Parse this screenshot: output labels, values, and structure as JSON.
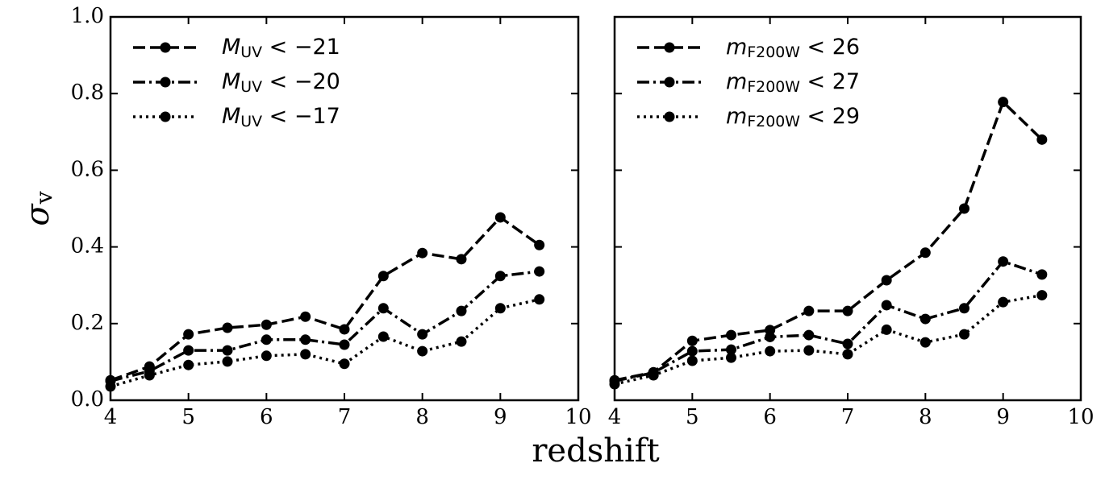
{
  "chart_data": [
    {
      "type": "line",
      "x": [
        4,
        4.5,
        5,
        5.5,
        6,
        6.5,
        7,
        7.5,
        8,
        8.5,
        9,
        9.5
      ],
      "ylabel": "σv",
      "xlim": [
        4,
        10
      ],
      "xticks": [
        4,
        5,
        6,
        7,
        8,
        9,
        10
      ],
      "ylim": [
        0,
        1
      ],
      "yticks": [
        {
          "value": 0,
          "label": "0.0"
        },
        0.2,
        0.4,
        0.6,
        0.8,
        {
          "value": 1,
          "label": "1.0"
        }
      ],
      "legend": "upper left",
      "series": [
        {
          "name": "MUV < −21",
          "color": "#000000",
          "linestyle": "dashed",
          "values": [
            0.052,
            0.088,
            0.172,
            0.189,
            0.197,
            0.218,
            0.185,
            0.324,
            0.384,
            0.368,
            0.477,
            0.405
          ]
        },
        {
          "name": "MUV < −20",
          "color": "#000000",
          "linestyle": "dashdot",
          "values": [
            0.05,
            0.076,
            0.13,
            0.13,
            0.158,
            0.158,
            0.145,
            0.24,
            0.172,
            0.233,
            0.324,
            0.336
          ]
        },
        {
          "name": "MUV < −17",
          "color": "#000000",
          "linestyle": "dotted",
          "values": [
            0.036,
            0.065,
            0.092,
            0.101,
            0.116,
            0.12,
            0.095,
            0.166,
            0.128,
            0.153,
            0.24,
            0.263
          ]
        }
      ]
    },
    {
      "type": "line",
      "x": [
        4,
        4.5,
        5,
        5.5,
        6,
        6.5,
        7,
        7.5,
        8,
        8.5,
        9,
        9.5
      ],
      "xlabel": "redshift",
      "xlim": [
        4,
        10
      ],
      "xticks": [
        4,
        5,
        6,
        7,
        8,
        9,
        10
      ],
      "ylim": [
        0,
        1
      ],
      "yticks": [
        0,
        0.2,
        0.4,
        0.6,
        0.8,
        1
      ],
      "legend": "upper left",
      "series": [
        {
          "name": "mF200W < 26",
          "color": "#000000",
          "linestyle": "dashed",
          "values": [
            0.052,
            0.073,
            0.155,
            0.17,
            0.183,
            0.233,
            0.233,
            0.313,
            0.385,
            0.5,
            0.778,
            0.68
          ]
        },
        {
          "name": "mF200W < 27",
          "color": "#000000",
          "linestyle": "dashdot",
          "values": [
            0.05,
            0.072,
            0.128,
            0.132,
            0.165,
            0.17,
            0.147,
            0.248,
            0.212,
            0.24,
            0.362,
            0.328
          ]
        },
        {
          "name": "mF200W < 29",
          "color": "#000000",
          "linestyle": "dotted",
          "values": [
            0.042,
            0.065,
            0.103,
            0.111,
            0.128,
            0.13,
            0.12,
            0.184,
            0.151,
            0.172,
            0.256,
            0.274
          ]
        }
      ]
    }
  ]
}
